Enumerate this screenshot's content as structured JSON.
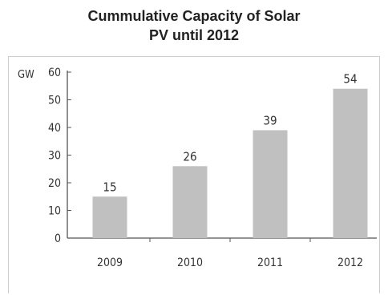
{
  "chart_data": {
    "type": "bar",
    "title": "Cummulative Capacity of  Solar PV until 2012",
    "title_lines": [
      "Cummulative Capacity of  Solar",
      "PV until 2012"
    ],
    "ylabel": "GW",
    "xlabel": "",
    "categories": [
      "2009",
      "2010",
      "2011",
      "2012"
    ],
    "values": [
      15,
      26,
      39,
      54
    ],
    "data_labels": [
      "15",
      "26",
      "39",
      "54"
    ],
    "ylim": [
      0,
      60
    ],
    "yticks": [
      0,
      10,
      20,
      30,
      40,
      50,
      60
    ],
    "grid": false,
    "legend": "none",
    "bar_color": "#c0c0c0",
    "axis_color": "#555555",
    "text_color": "#333333"
  }
}
